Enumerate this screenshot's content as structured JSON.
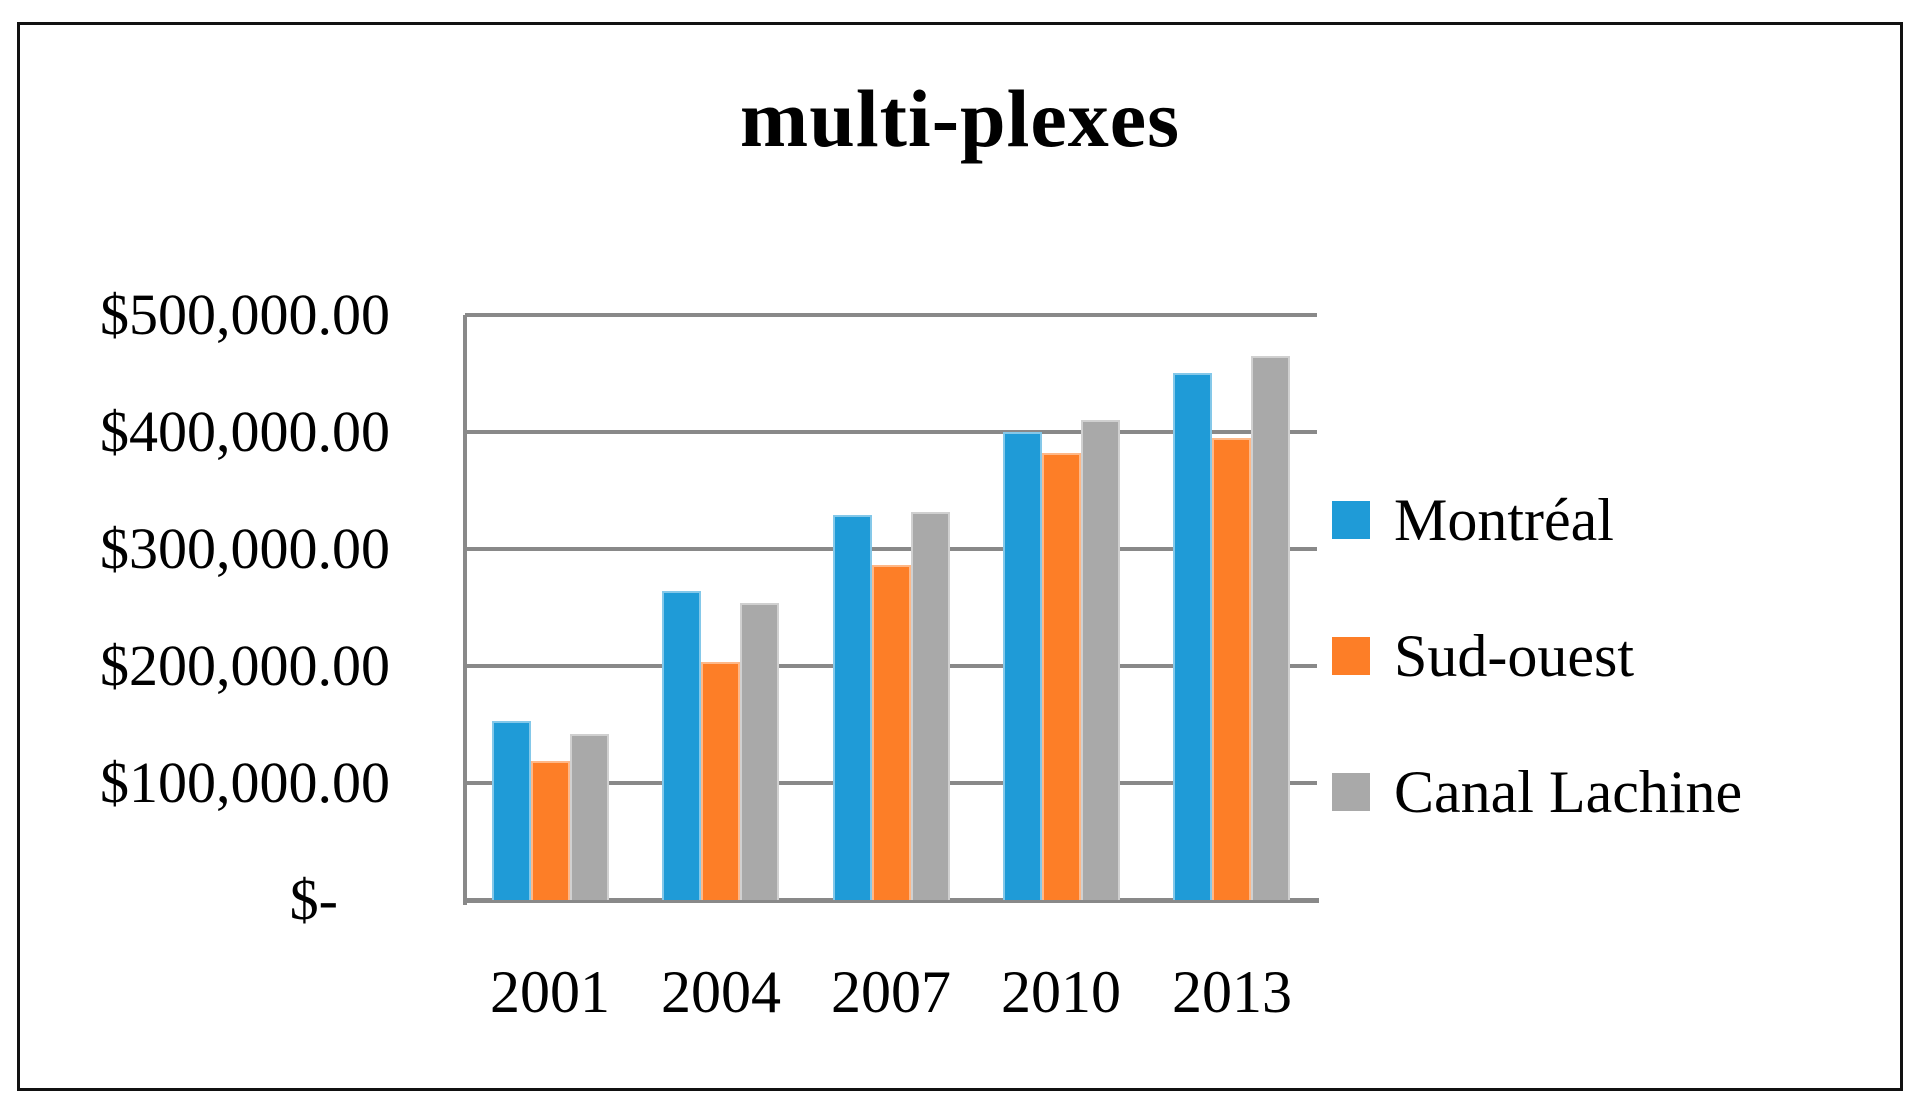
{
  "chart_data": {
    "type": "bar",
    "title": "multi-plexes",
    "categories": [
      "2001",
      "2004",
      "2007",
      "2010",
      "2013"
    ],
    "series": [
      {
        "name": "Montréal",
        "color": "#1F9BD7",
        "values": [
          153000,
          264000,
          329000,
          400000,
          450000
        ]
      },
      {
        "name": "Sud-ouest",
        "color": "#FD7E27",
        "values": [
          119000,
          203000,
          286000,
          382000,
          395000
        ]
      },
      {
        "name": "Canal Lachine",
        "color": "#A9A9A9",
        "values": [
          142000,
          254000,
          332000,
          410000,
          465000
        ]
      }
    ],
    "y_axis": {
      "min": 0,
      "max": 500000,
      "step": 100000,
      "tick_labels_top_to_bottom": [
        "$500,000.00",
        "$400,000.00",
        "$300,000.00",
        "$200,000.00",
        "$100,000.00",
        "$-"
      ]
    },
    "xlabel": "",
    "ylabel": "",
    "legend_position": "right",
    "grid": true
  },
  "colors": {
    "background": "#FFFFFF",
    "frame_border": "#111111",
    "gridline": "#898989",
    "axis": "#898989",
    "text": "#000000"
  }
}
